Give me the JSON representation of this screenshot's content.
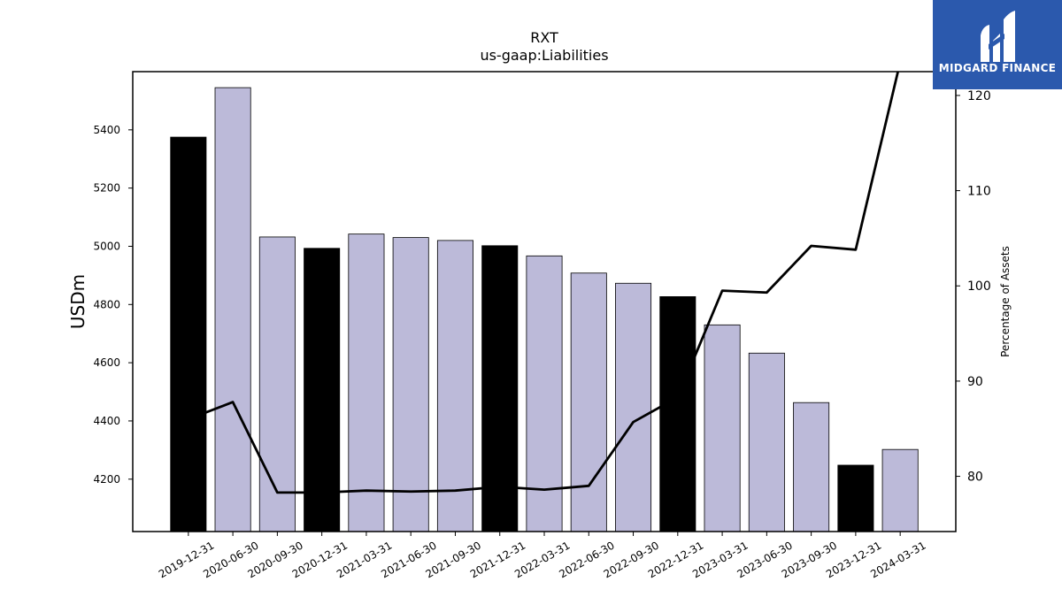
{
  "chart_data": {
    "type": "bar",
    "title": "RXT",
    "subtitle": "us-gaap:Liabilities",
    "ylabel": "USDm",
    "y2label": "Percentage of Assets",
    "categories": [
      "2019-12-31",
      "2020-06-30",
      "2020-09-30",
      "2020-12-31",
      "2021-03-31",
      "2021-06-30",
      "2021-09-30",
      "2021-12-31",
      "2022-03-31",
      "2022-06-30",
      "2022-09-30",
      "2022-12-31",
      "2023-03-31",
      "2023-06-30",
      "2023-09-30",
      "2023-12-31",
      "2024-03-31"
    ],
    "series": [
      {
        "type": "bar",
        "values": [
          5375,
          5545,
          5032,
          4993,
          5042,
          5030,
          5020,
          5002,
          4967,
          4908,
          4873,
          4827,
          4730,
          4633,
          4463,
          4248,
          4302
        ],
        "highlight": [
          true,
          false,
          false,
          true,
          false,
          false,
          false,
          true,
          false,
          false,
          false,
          true,
          false,
          false,
          false,
          true,
          false
        ]
      },
      {
        "type": "line",
        "axis": "right",
        "values": [
          86.0,
          87.8,
          78.3,
          78.3,
          78.5,
          78.4,
          78.5,
          78.9,
          78.6,
          79.0,
          85.7,
          88.3,
          99.5,
          99.3,
          104.2,
          103.8,
          123.5
        ]
      }
    ],
    "ylim": [
      4020,
      5600
    ],
    "yticks": [
      4200,
      4400,
      4600,
      4800,
      5000,
      5200,
      5400
    ],
    "y2lim": [
      74.2,
      122.5
    ],
    "y2ticks": [
      80,
      90,
      100,
      110,
      120
    ],
    "colors": {
      "highlight": "#000000",
      "normal": "#bcbad9",
      "line": "#000000"
    }
  },
  "logo": {
    "text": "MIDGARD FINANCE",
    "bg": "#2b59ad"
  }
}
